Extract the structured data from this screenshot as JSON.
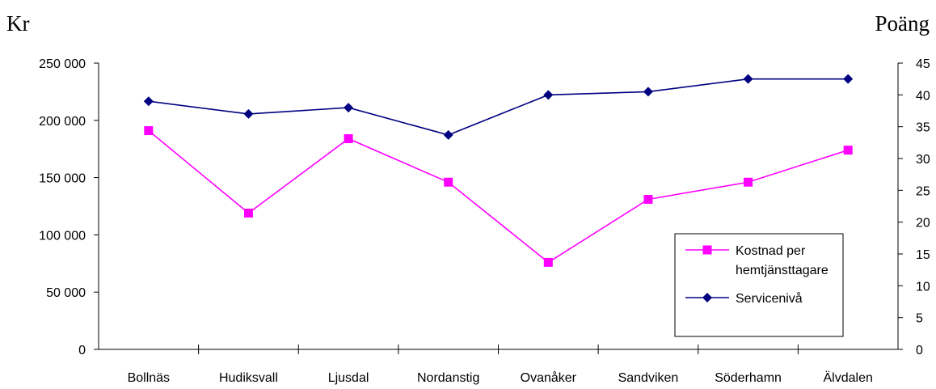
{
  "chart_data": {
    "type": "line",
    "left_unit": "Kr",
    "right_unit": "Poäng",
    "categories": [
      "Bollnäs",
      "Hudiksvall",
      "Ljusdal",
      "Nordanstig",
      "Ovanåker",
      "Sandviken",
      "Söderhamn",
      "Älvdalen"
    ],
    "left_axis": {
      "min": 0,
      "max": 250000,
      "ticks": [
        0,
        50000,
        100000,
        150000,
        200000,
        250000
      ],
      "tick_labels": [
        "0",
        "50 000",
        "100 000",
        "150 000",
        "200 000",
        "250 000"
      ]
    },
    "right_axis": {
      "min": 0,
      "max": 45,
      "ticks": [
        0,
        5,
        10,
        15,
        20,
        25,
        30,
        35,
        40,
        45
      ],
      "tick_labels": [
        "0",
        "5",
        "10",
        "15",
        "20",
        "25",
        "30",
        "35",
        "40",
        "45"
      ]
    },
    "series": [
      {
        "name": "Kostnad per hemtjänsttagare",
        "legend_lines": [
          "Kostnad per",
          "hemtjänsttagare"
        ],
        "axis": "left",
        "color": "#FF00FF",
        "marker": "square",
        "values": [
          191000,
          119000,
          184000,
          146000,
          76000,
          131000,
          146000,
          174000
        ]
      },
      {
        "name": "Servicenivå",
        "legend_lines": [
          "Servicenivå"
        ],
        "axis": "right",
        "color": "#000080",
        "marker": "diamond",
        "values": [
          39,
          37,
          38,
          33.7,
          40,
          40.5,
          42.5,
          42.5
        ]
      }
    ],
    "legend_position": "bottom-right"
  }
}
